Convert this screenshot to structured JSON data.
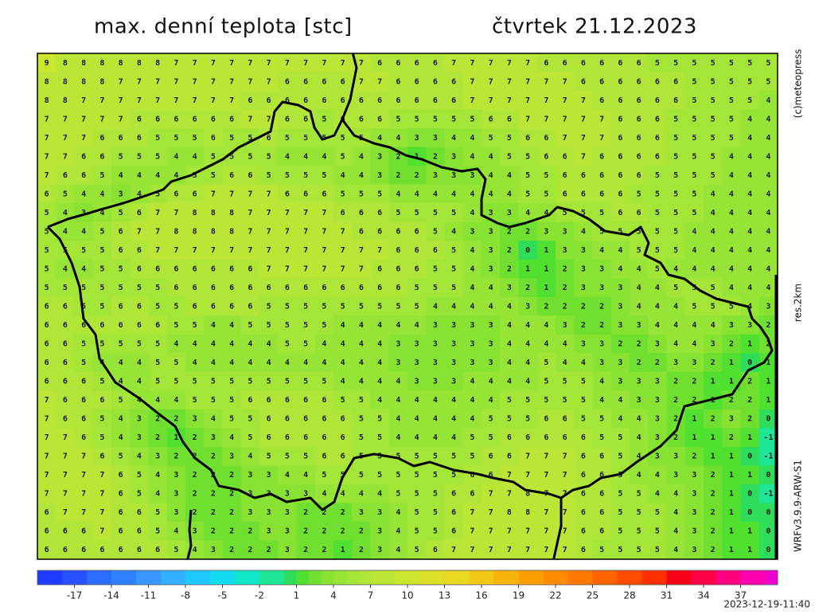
{
  "header": {
    "title": "max. denní teplota [stc]",
    "date": "čtvrtek 21.12.2023"
  },
  "side_labels": {
    "copyright": "(c)meteopress",
    "resolution": "res.2km",
    "model": "WRFv3.9.9-ARW-S1"
  },
  "timestamp": "2023-12-19-11:40",
  "map": {
    "grid": [
      [
        9,
        8,
        8,
        8,
        8,
        8,
        8,
        7,
        7,
        7,
        7,
        7,
        7,
        7,
        7,
        7,
        7,
        7,
        6,
        6,
        6,
        6,
        7,
        7,
        7,
        7,
        7,
        6,
        6,
        6,
        6,
        6,
        6,
        5,
        5,
        5,
        5,
        5,
        5,
        5
      ],
      [
        8,
        8,
        8,
        8,
        7,
        7,
        7,
        7,
        7,
        7,
        7,
        7,
        7,
        6,
        6,
        6,
        6,
        7,
        7,
        6,
        6,
        6,
        6,
        7,
        7,
        7,
        7,
        7,
        7,
        6,
        6,
        6,
        6,
        6,
        6,
        5,
        5,
        5,
        5,
        5
      ],
      [
        8,
        8,
        7,
        7,
        7,
        7,
        7,
        7,
        7,
        7,
        7,
        6,
        6,
        6,
        6,
        6,
        6,
        6,
        6,
        6,
        6,
        6,
        6,
        7,
        7,
        7,
        7,
        7,
        7,
        7,
        6,
        6,
        6,
        6,
        6,
        5,
        5,
        5,
        5,
        4
      ],
      [
        7,
        7,
        7,
        7,
        7,
        6,
        6,
        6,
        6,
        6,
        6,
        7,
        7,
        6,
        6,
        5,
        6,
        6,
        6,
        5,
        5,
        5,
        5,
        5,
        6,
        6,
        7,
        7,
        7,
        7,
        7,
        6,
        6,
        6,
        5,
        5,
        5,
        5,
        4,
        4
      ],
      [
        7,
        7,
        7,
        6,
        6,
        6,
        5,
        5,
        5,
        6,
        5,
        5,
        6,
        5,
        5,
        5,
        5,
        5,
        4,
        4,
        3,
        3,
        4,
        4,
        5,
        5,
        6,
        6,
        7,
        7,
        7,
        6,
        6,
        6,
        5,
        5,
        5,
        5,
        4,
        4
      ],
      [
        7,
        7,
        6,
        6,
        5,
        5,
        5,
        4,
        4,
        5,
        5,
        5,
        5,
        4,
        4,
        4,
        5,
        4,
        3,
        2,
        1,
        2,
        3,
        4,
        4,
        5,
        5,
        6,
        6,
        7,
        6,
        6,
        6,
        6,
        5,
        5,
        5,
        4,
        4,
        4
      ],
      [
        7,
        6,
        6,
        5,
        4,
        4,
        4,
        4,
        5,
        5,
        6,
        6,
        5,
        5,
        5,
        5,
        4,
        4,
        3,
        2,
        2,
        3,
        3,
        3,
        4,
        4,
        5,
        5,
        6,
        6,
        6,
        6,
        6,
        5,
        5,
        5,
        5,
        4,
        4,
        4
      ],
      [
        6,
        5,
        4,
        4,
        3,
        4,
        5,
        6,
        6,
        7,
        7,
        7,
        7,
        6,
        6,
        6,
        5,
        5,
        5,
        4,
        4,
        4,
        4,
        4,
        4,
        4,
        5,
        5,
        6,
        6,
        6,
        6,
        5,
        5,
        5,
        5,
        4,
        4,
        4,
        4
      ],
      [
        5,
        4,
        3,
        4,
        5,
        6,
        7,
        7,
        8,
        8,
        8,
        7,
        7,
        7,
        7,
        7,
        6,
        6,
        6,
        5,
        5,
        5,
        5,
        4,
        3,
        3,
        4,
        4,
        5,
        5,
        5,
        6,
        6,
        5,
        5,
        5,
        4,
        4,
        4,
        4
      ],
      [
        5,
        4,
        4,
        5,
        6,
        7,
        7,
        8,
        8,
        8,
        8,
        7,
        7,
        7,
        7,
        7,
        7,
        6,
        6,
        6,
        6,
        5,
        4,
        3,
        3,
        2,
        2,
        3,
        3,
        4,
        5,
        5,
        5,
        5,
        5,
        4,
        4,
        4,
        4,
        4
      ],
      [
        5,
        5,
        5,
        5,
        6,
        6,
        7,
        7,
        7,
        7,
        7,
        7,
        7,
        7,
        7,
        7,
        7,
        7,
        7,
        6,
        6,
        6,
        5,
        4,
        3,
        2,
        0,
        1,
        3,
        3,
        4,
        4,
        5,
        5,
        5,
        4,
        4,
        4,
        4,
        4
      ],
      [
        5,
        4,
        4,
        5,
        5,
        6,
        6,
        6,
        6,
        6,
        6,
        6,
        7,
        7,
        7,
        7,
        7,
        7,
        6,
        6,
        6,
        5,
        5,
        4,
        3,
        2,
        1,
        1,
        2,
        3,
        3,
        4,
        4,
        5,
        4,
        4,
        4,
        4,
        4,
        4
      ],
      [
        5,
        5,
        5,
        5,
        5,
        5,
        5,
        6,
        6,
        6,
        6,
        6,
        6,
        6,
        6,
        6,
        6,
        6,
        6,
        6,
        5,
        5,
        5,
        4,
        4,
        3,
        2,
        1,
        2,
        3,
        3,
        3,
        4,
        4,
        5,
        5,
        5,
        4,
        4,
        4
      ],
      [
        6,
        6,
        5,
        5,
        6,
        6,
        5,
        5,
        6,
        6,
        6,
        6,
        5,
        5,
        5,
        5,
        5,
        5,
        5,
        5,
        5,
        4,
        4,
        4,
        4,
        4,
        3,
        2,
        2,
        2,
        2,
        3,
        4,
        4,
        4,
        5,
        5,
        5,
        4,
        3
      ],
      [
        6,
        6,
        6,
        6,
        6,
        6,
        6,
        5,
        5,
        4,
        4,
        5,
        5,
        5,
        5,
        5,
        4,
        4,
        4,
        4,
        4,
        3,
        3,
        3,
        3,
        4,
        4,
        4,
        3,
        2,
        2,
        3,
        3,
        4,
        4,
        4,
        4,
        3,
        3,
        2
      ],
      [
        6,
        6,
        5,
        5,
        5,
        5,
        5,
        4,
        4,
        4,
        4,
        4,
        4,
        5,
        5,
        4,
        4,
        4,
        4,
        3,
        3,
        3,
        3,
        3,
        3,
        4,
        4,
        4,
        4,
        3,
        3,
        2,
        2,
        3,
        4,
        4,
        3,
        2,
        1,
        2
      ],
      [
        6,
        6,
        5,
        4,
        4,
        4,
        5,
        5,
        4,
        4,
        4,
        4,
        4,
        4,
        4,
        4,
        4,
        4,
        4,
        3,
        3,
        3,
        3,
        3,
        3,
        4,
        4,
        5,
        4,
        4,
        3,
        3,
        2,
        2,
        3,
        3,
        2,
        1,
        0,
        1
      ],
      [
        6,
        6,
        6,
        5,
        4,
        4,
        5,
        5,
        5,
        5,
        5,
        5,
        5,
        5,
        5,
        5,
        4,
        4,
        4,
        4,
        3,
        3,
        3,
        4,
        4,
        4,
        4,
        5,
        5,
        5,
        4,
        3,
        3,
        3,
        2,
        2,
        1,
        1,
        2,
        1
      ],
      [
        7,
        6,
        6,
        6,
        5,
        4,
        4,
        4,
        5,
        5,
        5,
        6,
        6,
        6,
        6,
        6,
        5,
        5,
        4,
        4,
        4,
        4,
        4,
        4,
        4,
        5,
        5,
        5,
        5,
        5,
        4,
        4,
        3,
        3,
        2,
        2,
        1,
        2,
        2,
        1
      ],
      [
        7,
        6,
        6,
        5,
        4,
        3,
        2,
        2,
        3,
        4,
        5,
        5,
        6,
        6,
        6,
        6,
        6,
        5,
        5,
        4,
        4,
        4,
        4,
        4,
        5,
        5,
        5,
        6,
        6,
        5,
        5,
        4,
        4,
        3,
        2,
        1,
        2,
        3,
        2,
        0
      ],
      [
        7,
        7,
        6,
        5,
        4,
        3,
        2,
        1,
        2,
        3,
        4,
        5,
        6,
        6,
        6,
        6,
        6,
        5,
        5,
        4,
        4,
        4,
        4,
        5,
        5,
        6,
        6,
        6,
        6,
        6,
        5,
        5,
        4,
        3,
        2,
        1,
        1,
        2,
        1,
        -1
      ],
      [
        7,
        7,
        7,
        6,
        5,
        4,
        3,
        2,
        2,
        2,
        3,
        4,
        5,
        5,
        5,
        6,
        6,
        5,
        5,
        5,
        5,
        5,
        5,
        5,
        6,
        6,
        7,
        7,
        7,
        6,
        6,
        5,
        4,
        3,
        3,
        2,
        1,
        1,
        0,
        -1
      ],
      [
        7,
        7,
        7,
        7,
        6,
        5,
        4,
        3,
        2,
        2,
        2,
        3,
        3,
        4,
        4,
        5,
        5,
        5,
        5,
        5,
        5,
        5,
        5,
        6,
        6,
        7,
        7,
        7,
        7,
        6,
        6,
        5,
        4,
        4,
        3,
        3,
        2,
        1,
        1,
        0
      ],
      [
        7,
        7,
        7,
        7,
        6,
        5,
        4,
        3,
        2,
        2,
        2,
        3,
        3,
        3,
        3,
        4,
        4,
        4,
        4,
        5,
        5,
        5,
        6,
        6,
        7,
        7,
        8,
        7,
        7,
        6,
        6,
        5,
        5,
        4,
        4,
        3,
        2,
        1,
        0,
        -1
      ],
      [
        6,
        7,
        7,
        7,
        6,
        6,
        5,
        3,
        2,
        2,
        2,
        3,
        3,
        3,
        2,
        2,
        2,
        3,
        3,
        4,
        5,
        5,
        6,
        7,
        7,
        8,
        8,
        7,
        7,
        6,
        6,
        5,
        5,
        5,
        4,
        3,
        2,
        1,
        0,
        0
      ],
      [
        6,
        6,
        6,
        7,
        6,
        6,
        5,
        4,
        3,
        2,
        2,
        2,
        3,
        3,
        2,
        2,
        2,
        2,
        3,
        4,
        5,
        5,
        6,
        7,
        7,
        7,
        7,
        7,
        7,
        6,
        6,
        5,
        5,
        5,
        4,
        3,
        2,
        1,
        1,
        0
      ],
      [
        6,
        6,
        6,
        6,
        6,
        6,
        6,
        5,
        4,
        3,
        2,
        2,
        2,
        3,
        2,
        2,
        1,
        2,
        3,
        4,
        5,
        6,
        7,
        7,
        7,
        7,
        7,
        7,
        7,
        6,
        5,
        5,
        5,
        5,
        4,
        3,
        2,
        1,
        1,
        0
      ]
    ]
  },
  "colorbar": {
    "lim": [
      -20,
      40
    ],
    "ticks": [
      -17,
      -14,
      -11,
      -8,
      -5,
      -2,
      1,
      4,
      7,
      10,
      13,
      16,
      19,
      22,
      25,
      28,
      31,
      34,
      37
    ],
    "steps": [
      {
        "from": -20,
        "color": "#1e3cff"
      },
      {
        "from": -18,
        "color": "#2850ff"
      },
      {
        "from": -16,
        "color": "#2a6cff"
      },
      {
        "from": -14,
        "color": "#2f80ff"
      },
      {
        "from": -12,
        "color": "#3a96ff"
      },
      {
        "from": -10,
        "color": "#33b0ff"
      },
      {
        "from": -8,
        "color": "#1ec8ff"
      },
      {
        "from": -6,
        "color": "#14dcf0"
      },
      {
        "from": -4,
        "color": "#10e6c8"
      },
      {
        "from": -2,
        "color": "#1ee696"
      },
      {
        "from": 0,
        "color": "#2ede5a"
      },
      {
        "from": 1,
        "color": "#50e030"
      },
      {
        "from": 2,
        "color": "#70e030"
      },
      {
        "from": 3,
        "color": "#88e232"
      },
      {
        "from": 4,
        "color": "#96e436"
      },
      {
        "from": 5,
        "color": "#a4e637"
      },
      {
        "from": 6,
        "color": "#b0e637"
      },
      {
        "from": 7,
        "color": "#bce636"
      },
      {
        "from": 9,
        "color": "#cce62e"
      },
      {
        "from": 11,
        "color": "#dce028"
      },
      {
        "from": 13,
        "color": "#e8d820"
      },
      {
        "from": 15,
        "color": "#f2c814"
      },
      {
        "from": 17,
        "color": "#f8b40a"
      },
      {
        "from": 19,
        "color": "#fca000"
      },
      {
        "from": 21,
        "color": "#ff8c00"
      },
      {
        "from": 23,
        "color": "#ff7800"
      },
      {
        "from": 25,
        "color": "#ff6400"
      },
      {
        "from": 27,
        "color": "#ff4c00"
      },
      {
        "from": 29,
        "color": "#ff3000"
      },
      {
        "from": 31,
        "color": "#f80018"
      },
      {
        "from": 33,
        "color": "#ff0046"
      },
      {
        "from": 35,
        "color": "#ff0080"
      },
      {
        "from": 37,
        "color": "#ff00b0"
      },
      {
        "from": 39,
        "color": "#f000d0"
      }
    ]
  }
}
